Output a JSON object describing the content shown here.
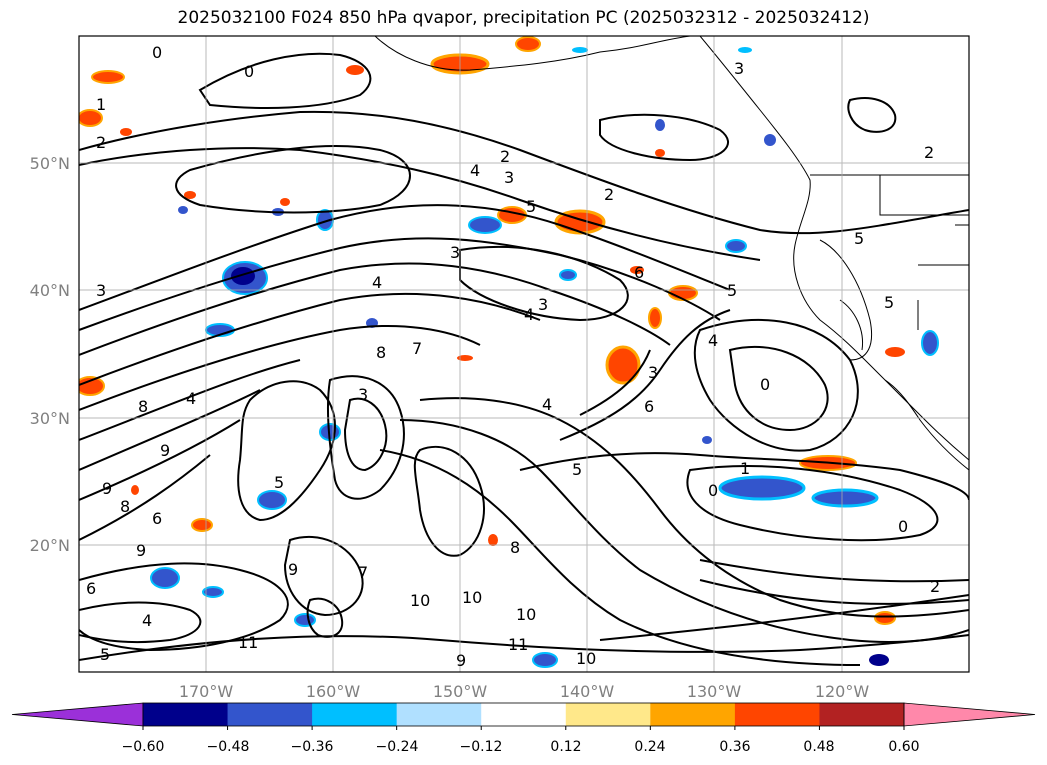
{
  "title": "2025032100 F024 850 hPa qvapor, precipitation PC (2025032312 - 2025032412)",
  "map": {
    "lat_labels": [
      "50°N",
      "40°N",
      "30°N",
      "20°N"
    ],
    "lon_labels": [
      "170°W",
      "160°W",
      "150°W",
      "140°W",
      "130°W",
      "120°W"
    ],
    "gridlines": true,
    "contour_labels": [
      "0",
      "1",
      "2",
      "2",
      "4",
      "3",
      "2",
      "5",
      "2",
      "6",
      "5",
      "3",
      "3",
      "4",
      "5",
      "4",
      "3",
      "7",
      "8",
      "8",
      "4",
      "9",
      "9",
      "8",
      "9",
      "6",
      "4",
      "5",
      "3",
      "5",
      "3",
      "4",
      "6",
      "0",
      "0",
      "0",
      "1",
      "5",
      "9",
      "7",
      "10",
      "10",
      "10",
      "11",
      "10",
      "11",
      "9",
      "8",
      "6",
      "4",
      "5",
      "0",
      "2",
      "3"
    ]
  },
  "colorbar": {
    "tick_labels": [
      "−0.60",
      "−0.48",
      "−0.36",
      "−0.24",
      "−0.12",
      "0.12",
      "0.24",
      "0.36",
      "0.48",
      "0.60"
    ],
    "colors": [
      "#9b30d9",
      "#00008b",
      "#3355cc",
      "#00bfff",
      "#b0e0ff",
      "#ffffff",
      "#ffe88a",
      "#ffa500",
      "#ff4500",
      "#b22222",
      "#ff88aa"
    ],
    "extend": "both"
  }
}
